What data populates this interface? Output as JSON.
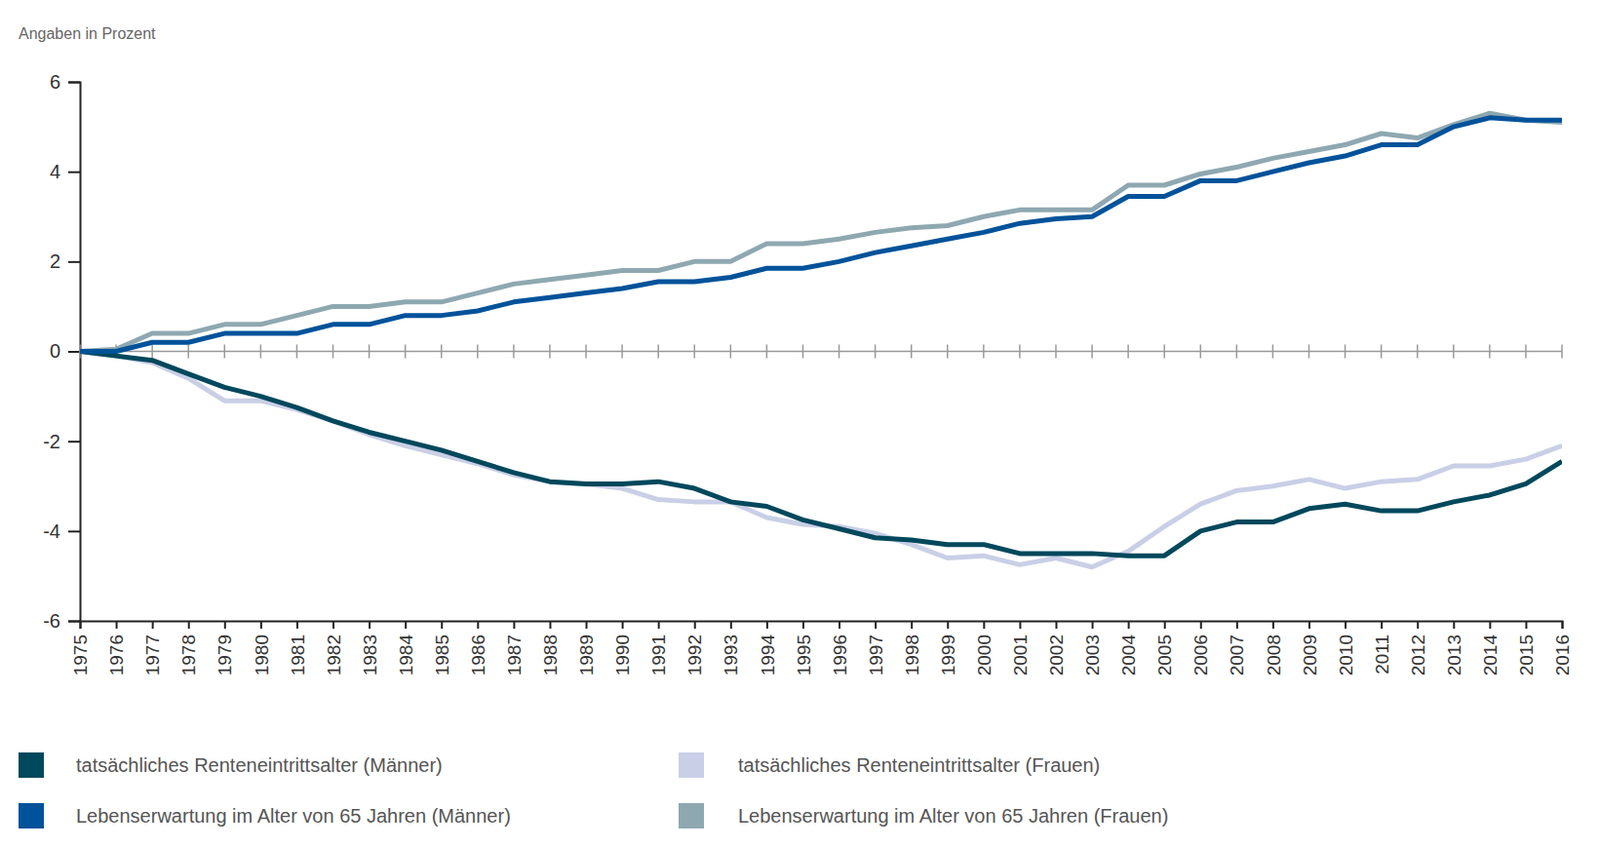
{
  "chart_data": {
    "type": "line",
    "y_label": "Angaben in Prozent",
    "x": [
      1975,
      1976,
      1977,
      1978,
      1979,
      1980,
      1981,
      1982,
      1983,
      1984,
      1985,
      1986,
      1987,
      1988,
      1989,
      1990,
      1991,
      1992,
      1993,
      1994,
      1995,
      1996,
      1997,
      1998,
      1999,
      2000,
      2001,
      2002,
      2003,
      2004,
      2005,
      2006,
      2007,
      2008,
      2009,
      2010,
      2011,
      2012,
      2013,
      2014,
      2015,
      2016
    ],
    "xlim": [
      1975,
      2016
    ],
    "xticks": [
      1975,
      1976,
      1977,
      1978,
      1979,
      1980,
      1981,
      1982,
      1983,
      1984,
      1985,
      1986,
      1987,
      1988,
      1989,
      1990,
      1991,
      1992,
      1993,
      1994,
      1995,
      1996,
      1997,
      1998,
      1999,
      2000,
      2001,
      2002,
      2003,
      2004,
      2005,
      2006,
      2007,
      2008,
      2009,
      2010,
      2011,
      2012,
      2013,
      2014,
      2015,
      2016
    ],
    "ylim": [
      -6,
      6
    ],
    "yticks": [
      -6,
      -4,
      -2,
      0,
      2,
      4,
      6
    ],
    "grid": false,
    "legend": "bottom",
    "series": [
      {
        "name": "tatsächliches Renteneintrittsalter (Männer)",
        "color": "#00485c",
        "values": [
          0,
          -0.1,
          -0.2,
          -0.5,
          -0.8,
          -1.0,
          -1.25,
          -1.55,
          -1.8,
          -2.0,
          -2.2,
          -2.45,
          -2.7,
          -2.9,
          -2.95,
          -2.95,
          -2.9,
          -3.05,
          -3.35,
          -3.45,
          -3.75,
          -3.95,
          -4.15,
          -4.2,
          -4.3,
          -4.3,
          -4.5,
          -4.5,
          -4.5,
          -4.55,
          -4.55,
          -4.0,
          -3.8,
          -3.8,
          -3.5,
          -3.4,
          -3.55,
          -3.55,
          -3.35,
          -3.2,
          -2.95,
          -2.45
        ]
      },
      {
        "name": "tatsächliches Renteneintrittsalter (Frauen)",
        "color": "#c9cfe6",
        "values": [
          0,
          -0.1,
          -0.25,
          -0.6,
          -1.1,
          -1.1,
          -1.3,
          -1.55,
          -1.85,
          -2.1,
          -2.3,
          -2.5,
          -2.75,
          -2.9,
          -2.95,
          -3.05,
          -3.3,
          -3.35,
          -3.35,
          -3.7,
          -3.85,
          -3.9,
          -4.05,
          -4.3,
          -4.6,
          -4.55,
          -4.75,
          -4.6,
          -4.8,
          -4.45,
          -3.9,
          -3.4,
          -3.1,
          -3.0,
          -2.85,
          -3.05,
          -2.9,
          -2.85,
          -2.55,
          -2.55,
          -2.4,
          -2.1
        ]
      },
      {
        "name": "Lebenserwartung im Alter von 65 Jahren (Männer)",
        "color": "#00529a",
        "values": [
          0,
          0,
          0.2,
          0.2,
          0.4,
          0.4,
          0.4,
          0.6,
          0.6,
          0.8,
          0.8,
          0.9,
          1.1,
          1.2,
          1.3,
          1.4,
          1.55,
          1.55,
          1.65,
          1.85,
          1.85,
          2.0,
          2.2,
          2.35,
          2.5,
          2.65,
          2.85,
          2.95,
          3.0,
          3.45,
          3.45,
          3.8,
          3.8,
          4.0,
          4.2,
          4.35,
          4.6,
          4.6,
          5.0,
          5.2,
          5.15,
          5.15
        ]
      },
      {
        "name": "Lebenserwartung im Alter von 65 Jahren (Frauen)",
        "color": "#8ea8b1",
        "values": [
          0,
          0.05,
          0.4,
          0.4,
          0.6,
          0.6,
          0.8,
          1.0,
          1.0,
          1.1,
          1.1,
          1.3,
          1.5,
          1.6,
          1.7,
          1.8,
          1.8,
          2.0,
          2.0,
          2.4,
          2.4,
          2.5,
          2.65,
          2.75,
          2.8,
          3.0,
          3.15,
          3.15,
          3.15,
          3.7,
          3.7,
          3.95,
          4.1,
          4.3,
          4.45,
          4.6,
          4.85,
          4.75,
          5.05,
          5.3,
          5.15,
          5.1
        ]
      }
    ]
  }
}
